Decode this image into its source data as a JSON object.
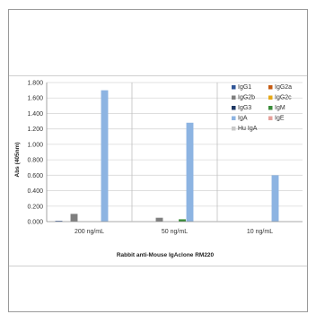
{
  "chart_data": {
    "type": "bar",
    "title": "",
    "xlabel": "Rabbit anti-Mouse IgAclone RM220",
    "ylabel": "Abs (405nm)",
    "ylim": [
      0,
      1.8
    ],
    "yticks": [
      "0.000",
      "0.200",
      "0.400",
      "0.600",
      "0.800",
      "1.000",
      "1.200",
      "1.400",
      "1.600",
      "1.800"
    ],
    "categories": [
      "200 ng/mL",
      "50 ng/mL",
      "10 ng/mL"
    ],
    "grid": true,
    "legend_position": "top-right",
    "series": [
      {
        "name": "IgG1",
        "color": "#2f5597",
        "values": [
          0.01,
          0.0,
          0.0
        ]
      },
      {
        "name": "IgG2a",
        "color": "#c55a11",
        "values": [
          0.0,
          0.0,
          0.0
        ]
      },
      {
        "name": "IgG2b",
        "color": "#7f7f7f",
        "values": [
          0.1,
          0.05,
          0.0
        ]
      },
      {
        "name": "IgG2c",
        "color": "#e6a817",
        "values": [
          0.0,
          0.0,
          0.0
        ]
      },
      {
        "name": "IgG3",
        "color": "#1f3864",
        "values": [
          0.0,
          0.0,
          0.0
        ]
      },
      {
        "name": "IgM",
        "color": "#3a8c3a",
        "values": [
          0.0,
          0.03,
          0.0
        ]
      },
      {
        "name": "IgA",
        "color": "#8db4e2",
        "values": [
          1.7,
          1.28,
          0.6
        ]
      },
      {
        "name": "IgE",
        "color": "#e6a09a",
        "values": [
          0.0,
          0.0,
          0.0
        ]
      },
      {
        "name": "Hu IgA",
        "color": "#c9c9c9",
        "values": [
          0.0,
          0.0,
          0.0
        ]
      }
    ]
  }
}
